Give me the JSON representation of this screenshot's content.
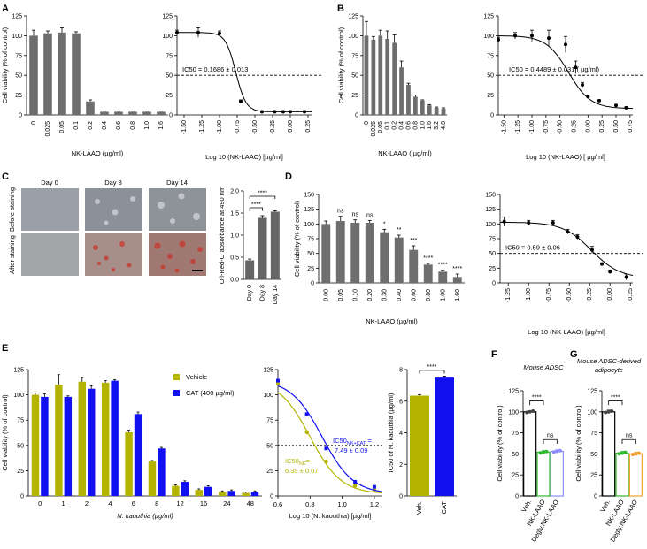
{
  "panel_letters": [
    "A",
    "B",
    "C",
    "D",
    "E",
    "F",
    "G"
  ],
  "colors": {
    "bar": "#6e6e6e",
    "olive": "#b4b400",
    "blue": "#1010f0",
    "green": "#2eb82e",
    "purple": "#8c8cff",
    "orange": "#f0a030",
    "fill_c": "#666666"
  },
  "chart_data": [
    {
      "id": "A1",
      "type": "bar",
      "ylabel": "Cell viability (% of control)",
      "xlabel": "NK-LAAO (µg/ml)",
      "ylim": [
        0,
        125
      ],
      "yticks": [
        0,
        25,
        50,
        75,
        100,
        125
      ],
      "categories": [
        "0",
        "0.025",
        "0.05",
        "0.1",
        "0.2",
        "0.4",
        "0.6",
        "0.8",
        "1.0",
        "1.6"
      ],
      "values": [
        100,
        103,
        104,
        103,
        17,
        4,
        4,
        4,
        4,
        4
      ],
      "errors": [
        7,
        3,
        6,
        2,
        2,
        1,
        1,
        1,
        1,
        1
      ]
    },
    {
      "id": "A2",
      "type": "scatter",
      "xlabel": "Log 10 (NK-LAAO) [µg/ml]",
      "ylim": [
        0,
        125
      ],
      "yticks": [
        0,
        25,
        50,
        75,
        100,
        125
      ],
      "xlim": [
        -1.6,
        0.3
      ],
      "xticks": [
        "-1.50",
        "-1.25",
        "-1.00",
        "-0.75",
        "-0.50",
        "-0.25",
        "0.00",
        "0.25"
      ],
      "x": [
        -1.6,
        -1.3,
        -1.0,
        -0.7,
        -0.4,
        -0.22,
        -0.1,
        0.0,
        0.2
      ],
      "y": [
        104,
        104,
        103,
        17,
        4,
        4,
        4,
        4,
        4
      ],
      "yerr": [
        3,
        6,
        3,
        2,
        1,
        1,
        1,
        1,
        1
      ],
      "ic50_log": -0.77,
      "annotation": "IC50 = 0.1686 ± 0.013"
    },
    {
      "id": "B1",
      "type": "bar",
      "ylabel": "Cell viability (% of control)",
      "xlabel": "NK-LAAO ( µg/ml)",
      "ylim": [
        0,
        125
      ],
      "yticks": [
        0,
        25,
        50,
        75,
        100,
        125
      ],
      "categories": [
        "0",
        "0.025",
        "0.05",
        "0.1",
        "0.2",
        "0.4",
        "0.6",
        "0.8",
        "1.0",
        "1.6",
        "3.2",
        "4.8"
      ],
      "values": [
        100,
        95,
        100,
        96,
        91,
        60,
        38,
        23,
        18,
        12,
        9,
        8
      ],
      "errors": [
        18,
        4,
        7,
        10,
        10,
        8,
        2,
        2,
        1,
        1,
        1,
        1
      ]
    },
    {
      "id": "B2",
      "type": "scatter",
      "xlabel": "Log 10 (NK-LAAO) [ µg/ml]",
      "ylim": [
        0,
        125
      ],
      "yticks": [
        0,
        25,
        50,
        75,
        100,
        125
      ],
      "xlim": [
        -1.6,
        0.8
      ],
      "xticks": [
        "-1.50",
        "-1.25",
        "-1.00",
        "-0.75",
        "-0.50",
        "-0.25",
        "0.00",
        "0.25",
        "0.50",
        "0.75"
      ],
      "x": [
        -1.6,
        -1.3,
        -1.0,
        -0.7,
        -0.4,
        -0.22,
        -0.1,
        0.0,
        0.2,
        0.5,
        0.68
      ],
      "y": [
        95,
        100,
        100,
        97,
        89,
        60,
        38,
        23,
        18,
        12,
        9
      ],
      "yerr": [
        3,
        4,
        7,
        10,
        10,
        8,
        3,
        2,
        1,
        1,
        1
      ],
      "ic50_log": -0.35,
      "annotation": "IC50 = 0.4489 ± 0.031 ( µg/ml)"
    },
    {
      "id": "C",
      "type": "bar",
      "ylabel": "Oil-Red-O absorbance at 490 nm",
      "ylim": [
        0,
        2.0
      ],
      "yticks": [
        "0.0",
        "0.5",
        "1.0",
        "1.5",
        "2.0"
      ],
      "categories": [
        "Day 0",
        "Day 8",
        "Day 14"
      ],
      "values": [
        0.43,
        1.39,
        1.53
      ],
      "errors": [
        0.03,
        0.05,
        0.02
      ],
      "significance": [
        "****",
        "****"
      ]
    },
    {
      "id": "D1",
      "type": "bar",
      "ylabel": "Cell viability (% of control)",
      "xlabel": "NK-LAAO (µg/ml)",
      "ylim": [
        0,
        150
      ],
      "yticks": [
        0,
        25,
        50,
        75,
        100,
        125,
        150
      ],
      "categories": [
        "0.00",
        "0.05",
        "0.10",
        "0.20",
        "0.30",
        "0.40",
        "0.60",
        "0.80",
        "1.00",
        "1.60"
      ],
      "values": [
        100,
        105,
        102,
        102,
        86,
        77,
        56,
        31,
        19,
        10
      ],
      "errors": [
        5,
        8,
        5,
        4,
        5,
        4,
        7,
        2,
        3,
        5
      ],
      "significance": [
        "",
        "ns",
        "ns",
        "ns",
        "*",
        "**",
        "***",
        "****",
        "****",
        "****"
      ]
    },
    {
      "id": "D2",
      "type": "scatter",
      "xlabel": "Log 10 (NK-LAAO) [µg/ml]",
      "ylim": [
        0,
        150
      ],
      "yticks": [
        0,
        25,
        50,
        75,
        100,
        125,
        150
      ],
      "xlim": [
        -1.35,
        0.28
      ],
      "xticks": [
        "-1.25",
        "-1.00",
        "-0.75",
        "-0.50",
        "-0.25",
        "0.00",
        "0.25"
      ],
      "x": [
        -1.3,
        -1.0,
        -0.7,
        -0.52,
        -0.4,
        -0.22,
        -0.1,
        0.0,
        0.2
      ],
      "y": [
        104,
        102,
        102,
        87,
        78,
        56,
        32,
        19,
        10
      ],
      "yerr": [
        8,
        4,
        4,
        4,
        4,
        6,
        2,
        3,
        5
      ],
      "ic50_log": -0.23,
      "annotation": "IC50 = 0.59 ± 0.06"
    },
    {
      "id": "E1",
      "type": "bar",
      "ylabel": "Cell viability (% of control)",
      "xlabel": "N. kaouthia (µg/ml)",
      "ylim": [
        0,
        125
      ],
      "yticks": [
        0,
        25,
        50,
        75,
        100,
        125
      ],
      "categories": [
        "0",
        "1",
        "2",
        "4",
        "6",
        "8",
        "12",
        "16",
        "24",
        "48"
      ],
      "series": [
        {
          "name": "Vehicle",
          "values": [
            100,
            110,
            113,
            112,
            63,
            34,
            10,
            6,
            4,
            3
          ],
          "errors": [
            2,
            10,
            4,
            2,
            2,
            1,
            1,
            1,
            1,
            1
          ]
        },
        {
          "name": "CAT (400 µg/ml)",
          "values": [
            98,
            98,
            106,
            114,
            81,
            47,
            14,
            9,
            5,
            4
          ],
          "errors": [
            3,
            1,
            3,
            1,
            2,
            1,
            1,
            1,
            1,
            1
          ]
        }
      ]
    },
    {
      "id": "E2",
      "type": "scatter",
      "xlabel": "Log 10 (N. kaouthia) [µg/ml]",
      "ylim": [
        0,
        125
      ],
      "yticks": [
        0,
        25,
        50,
        75,
        100,
        125
      ],
      "xlim": [
        0.6,
        1.25
      ],
      "xticks": [
        "0.6",
        "0.8",
        "1.0",
        "1.2"
      ],
      "series": [
        {
          "name": "Vehicle",
          "x": [
            0.6,
            0.78,
            0.9,
            1.08,
            1.2
          ],
          "y": [
            111,
            63,
            34,
            10,
            6
          ]
        },
        {
          "name": "CAT",
          "x": [
            0.6,
            0.78,
            0.9,
            1.08,
            1.2
          ],
          "y": [
            114,
            81,
            47,
            14,
            9
          ]
        }
      ],
      "annotations": {
        "cat_label": "IC50",
        "cat_sub": "NK+CAT",
        "cat_value": "7.49 ± 0.09",
        "veh_label": "IC50",
        "veh_sub": "NK",
        "veh_value": "6.35 ± 0.07"
      }
    },
    {
      "id": "E3",
      "type": "bar",
      "ylabel": "IC50 of N. kaouthia (µg/ml)",
      "ylim": [
        0,
        8
      ],
      "yticks": [
        0,
        2,
        4,
        6,
        8
      ],
      "categories": [
        "Veh.",
        "CAT"
      ],
      "values": [
        6.35,
        7.49
      ],
      "errors": [
        0.07,
        0.09
      ],
      "significance": "****"
    },
    {
      "id": "F",
      "type": "bar",
      "title": "Mouse ADSC",
      "ylabel": "Cell viability (% of control)",
      "ylim": [
        0,
        125
      ],
      "yticks": [
        0,
        25,
        50,
        75,
        100,
        125
      ],
      "categories": [
        "Veh.",
        "NK-LAAO",
        "Degly.NK-LAAO"
      ],
      "values": [
        100,
        52,
        53
      ],
      "errors": [
        1,
        2,
        2
      ],
      "significance": [
        "****",
        "ns"
      ]
    },
    {
      "id": "G",
      "type": "bar",
      "title": "Mouse ADSC-derived adipocyte",
      "ylabel": "Cell viability (% of control)",
      "ylim": [
        0,
        125
      ],
      "yticks": [
        0,
        25,
        50,
        75,
        100,
        125
      ],
      "categories": [
        "Veh.",
        "NK-LAAO",
        "Degly.NK-LAAO"
      ],
      "values": [
        100,
        51,
        50
      ],
      "errors": [
        2,
        2,
        2
      ],
      "significance": [
        "****",
        "ns"
      ]
    }
  ],
  "panelC": {
    "columns": [
      "Day 0",
      "Day 8",
      "Day 14"
    ],
    "rows": [
      "Before staining",
      "After staining"
    ]
  },
  "legendE": {
    "vehicle": "Vehicle",
    "cat": "CAT (400 µg/ml)"
  }
}
